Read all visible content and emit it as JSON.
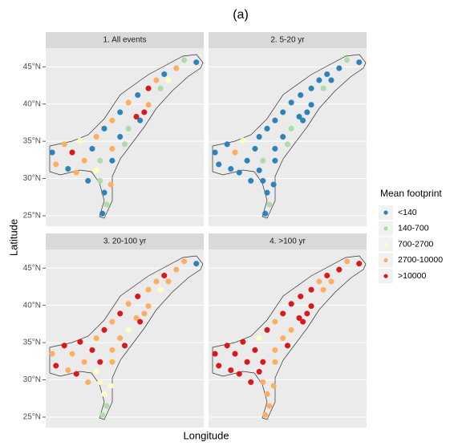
{
  "chart_data": {
    "type": "scatter",
    "title": "(a)",
    "xlabel": "Longitude",
    "ylabel": "Latitude",
    "xlim": [
      -97,
      -63
    ],
    "ylim": [
      23.6,
      47.5
    ],
    "yticks": [
      {
        "value": 25,
        "label": "25°N"
      },
      {
        "value": 30,
        "label": "30°N"
      },
      {
        "value": 35,
        "label": "35°N"
      },
      {
        "value": 40,
        "label": "40°N"
      },
      {
        "value": 45,
        "label": "45°N"
      }
    ],
    "grid": true,
    "legend_title": "Mean footprint",
    "legend_position": "right",
    "classes": [
      {
        "name": "<140",
        "color": "#2b83ba"
      },
      {
        "name": "140-700",
        "color": "#abdda4"
      },
      {
        "name": "700-2700",
        "color": "#ffffbf"
      },
      {
        "name": "2700-10000",
        "color": "#fdae61"
      },
      {
        "name": ">10000",
        "color": "#d7191c"
      }
    ],
    "panels": [
      {
        "title": "1. All events",
        "series": [
          {
            "x": [
              -64.6,
              -71.5,
              -77.2,
              -81.0,
              -84.4,
              -81.0,
              -95.6,
              -87.0,
              -92.2,
              -82.7,
              -84.4,
              -84.8,
              -76.7,
              -87.9
            ],
            "y": [
              45.6,
              44.0,
              41.2,
              38.9,
              36.7,
              35.6,
              33.5,
              34.0,
              31.3,
              32.4,
              28.1,
              25.3,
              37.8,
              29.7
            ]
          },
          {
            "x": [
              -67.2,
              -72.3,
              -79.2,
              -80.0,
              -85.3,
              -85.3,
              -83.9
            ],
            "y": [
              45.9,
              42.1,
              36.7,
              34.6,
              32.4,
              29.7,
              26.5
            ]
          },
          {
            "x": [
              -89.6,
              -86.1,
              -70.6
            ],
            "y": [
              35.1,
              31.1,
              43.2
            ]
          },
          {
            "x": [
              -68.9,
              -73.2,
              -79.2,
              -74.9,
              -82.7,
              -86.1,
              -93.0,
              -82.7,
              -94.8,
              -88.7,
              -83.0,
              -90.4
            ],
            "y": [
              44.8,
              43.2,
              40.2,
              39.9,
              37.8,
              35.6,
              34.6,
              34.0,
              31.9,
              32.4,
              29.2,
              30.8
            ]
          },
          {
            "x": [
              -74.9,
              -77.5,
              -91.3,
              -75.8
            ],
            "y": [
              42.1,
              38.3,
              33.5,
              38.9
            ]
          }
        ]
      },
      {
        "title": "2. 5-20 yr",
        "series": [
          {
            "x": [
              -64.6,
              -68.9,
              -71.5,
              -73.2,
              -74.9,
              -77.2,
              -79.2,
              -74.9,
              -81.0,
              -82.7,
              -77.5,
              -84.4,
              -86.1,
              -81.0,
              -93.0,
              -95.6,
              -87.0,
              -82.7,
              -94.8,
              -92.2,
              -88.7,
              -82.7,
              -86.1,
              -85.3,
              -84.4,
              -84.8,
              -83.0,
              -76.7,
              -75.8,
              -70.6,
              -90.4,
              -87.9
            ],
            "y": [
              45.6,
              44.8,
              44.0,
              43.2,
              42.1,
              41.2,
              40.2,
              39.9,
              38.9,
              37.8,
              38.3,
              36.7,
              35.6,
              35.6,
              34.6,
              33.5,
              34.0,
              34.0,
              31.9,
              31.3,
              32.4,
              32.4,
              31.1,
              29.7,
              28.1,
              25.3,
              29.2,
              37.8,
              38.9,
              43.2,
              30.8,
              29.7
            ]
          },
          {
            "x": [
              -67.2,
              -72.3,
              -79.2,
              -80.0,
              -85.3,
              -83.9
            ],
            "y": [
              45.9,
              42.1,
              36.7,
              34.6,
              32.4,
              26.5
            ]
          },
          {
            "x": [
              -89.6
            ],
            "y": [
              35.1
            ]
          },
          {
            "x": [
              -91.3
            ],
            "y": [
              33.5
            ]
          },
          {
            "x": [],
            "y": []
          }
        ]
      },
      {
        "title": "3. 20-100 yr",
        "series": [
          {
            "x": [
              -64.6
            ],
            "y": [
              45.6
            ]
          },
          {
            "x": [
              -83.9,
              -84.8
            ],
            "y": [
              26.5,
              25.3
            ]
          },
          {
            "x": [
              -72.3,
              -79.2,
              -86.1,
              -85.3,
              -84.4,
              -83.0
            ],
            "y": [
              42.1,
              36.7,
              31.1,
              29.7,
              28.1,
              29.2
            ]
          },
          {
            "x": [
              -67.2,
              -68.9,
              -73.2,
              -74.9,
              -79.2,
              -74.9,
              -82.7,
              -77.5,
              -86.1,
              -81.0,
              -95.6,
              -91.3,
              -82.7,
              -92.2,
              -88.7,
              -82.7,
              -75.8,
              -70.6,
              -87.9
            ],
            "y": [
              45.9,
              44.8,
              43.2,
              42.1,
              40.2,
              39.9,
              37.8,
              38.3,
              35.6,
              35.6,
              33.5,
              33.5,
              34.0,
              31.3,
              32.4,
              32.4,
              38.9,
              43.2,
              29.7
            ]
          },
          {
            "x": [
              -71.5,
              -77.2,
              -81.0,
              -84.4,
              -89.6,
              -93.0,
              -87.0,
              -80.0,
              -94.8,
              -85.3,
              -76.7,
              -90.4
            ],
            "y": [
              44.0,
              41.2,
              38.9,
              36.7,
              35.1,
              34.6,
              34.0,
              34.6,
              31.9,
              32.4,
              37.8,
              30.8
            ]
          }
        ]
      },
      {
        "title": "4. >100 yr",
        "series": [
          {
            "x": [],
            "y": []
          },
          {
            "x": [],
            "y": []
          },
          {
            "x": [
              -86.1
            ],
            "y": [
              35.6
            ]
          },
          {
            "x": [
              -67.2,
              -73.2,
              -72.3,
              -82.7,
              -79.2,
              -81.0,
              -82.7,
              -82.7,
              -85.3,
              -84.4,
              -83.9,
              -84.8,
              -83.0,
              -70.6
            ],
            "y": [
              45.9,
              43.2,
              42.1,
              37.8,
              36.7,
              35.6,
              34.0,
              32.4,
              29.7,
              28.1,
              26.5,
              25.3,
              29.2,
              43.2
            ]
          },
          {
            "x": [
              -64.6,
              -68.9,
              -71.5,
              -74.9,
              -77.2,
              -79.2,
              -74.9,
              -81.0,
              -77.5,
              -84.4,
              -89.6,
              -93.0,
              -95.6,
              -91.3,
              -87.0,
              -80.0,
              -94.8,
              -92.2,
              -88.7,
              -85.3,
              -86.1,
              -76.7,
              -75.8,
              -90.4,
              -87.9
            ],
            "y": [
              45.6,
              44.8,
              44.0,
              42.1,
              41.2,
              40.2,
              39.9,
              38.9,
              38.3,
              36.7,
              35.1,
              34.6,
              33.5,
              33.5,
              34.0,
              34.6,
              31.9,
              31.3,
              32.4,
              32.4,
              31.1,
              37.8,
              38.9,
              30.8,
              29.7
            ]
          }
        ]
      }
    ]
  }
}
